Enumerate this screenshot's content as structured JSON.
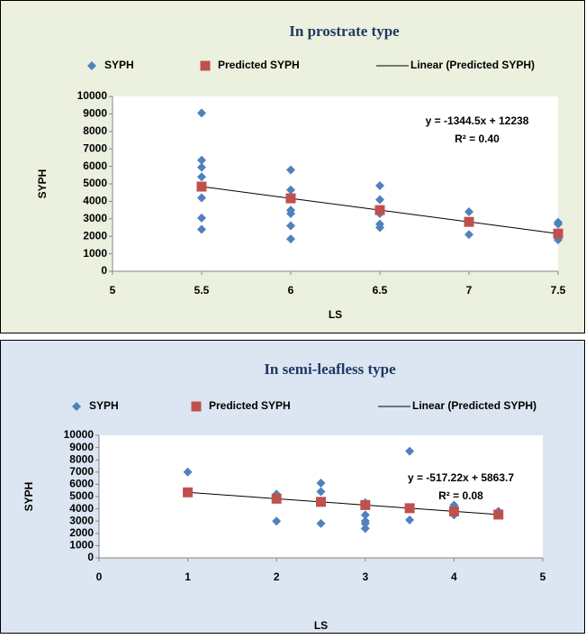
{
  "chart_data": [
    {
      "type": "scatter",
      "title": "In prostrate type",
      "x_label": "LS",
      "y_label": "SYPH",
      "xlim": [
        5,
        7.5
      ],
      "xticks": [
        5,
        5.5,
        6,
        6.5,
        7,
        7.5
      ],
      "ylim": [
        0,
        10000
      ],
      "yticks": [
        0,
        1000,
        2000,
        3000,
        4000,
        5000,
        6000,
        7000,
        8000,
        9000,
        10000
      ],
      "grid": false,
      "series": [
        {
          "name": "SYPH",
          "color": "#4f81bd",
          "marker": "diamond",
          "x": [
            5.5,
            5.5,
            5.5,
            5.5,
            5.5,
            5.5,
            5.5,
            6,
            6,
            6,
            6,
            6,
            6,
            6.5,
            6.5,
            6.5,
            6.5,
            6.5,
            7,
            7,
            7.5,
            7.5,
            7.5,
            7.5
          ],
          "values": [
            9050,
            6350,
            5950,
            5400,
            4200,
            3050,
            2400,
            5800,
            4650,
            3500,
            3300,
            2600,
            1850,
            4900,
            4100,
            3300,
            2700,
            2500,
            3400,
            2100,
            2800,
            2700,
            2000,
            1800
          ]
        },
        {
          "name": "Predicted SYPH",
          "color": "#c0504d",
          "marker": "square",
          "x": [
            5.5,
            6,
            6.5,
            7,
            7.5
          ],
          "values": [
            4843,
            4171,
            3499,
            2826,
            2154
          ]
        }
      ],
      "trendline": {
        "name": "Linear (Predicted SYPH)",
        "color": "#000000",
        "equation": "y = -1344.5x + 12238",
        "r2": "R² = 0.40"
      }
    },
    {
      "type": "scatter",
      "title": "In semi-leafless type",
      "x_label": "LS",
      "y_label": "SYPH",
      "xlim": [
        0,
        5
      ],
      "xticks": [
        0,
        1,
        2,
        3,
        4,
        5
      ],
      "ylim": [
        0,
        10000
      ],
      "yticks": [
        0,
        1000,
        2000,
        3000,
        4000,
        5000,
        6000,
        7000,
        8000,
        9000,
        10000
      ],
      "grid": false,
      "series": [
        {
          "name": "SYPH",
          "color": "#4f81bd",
          "marker": "diamond",
          "x": [
            1,
            2,
            2,
            2,
            2.5,
            2.5,
            2.5,
            3,
            3,
            3,
            3,
            3,
            3.5,
            3.5,
            3.5,
            4,
            4,
            4,
            4.5
          ],
          "values": [
            7000,
            5200,
            5000,
            3000,
            6100,
            5400,
            2800,
            4500,
            3500,
            3000,
            2800,
            2400,
            8700,
            4100,
            3100,
            4300,
            3700,
            3500,
            3800
          ]
        },
        {
          "name": "Predicted SYPH",
          "color": "#c0504d",
          "marker": "square",
          "x": [
            1,
            2,
            2.5,
            3,
            3.5,
            4,
            4.5
          ],
          "values": [
            5346,
            4829,
            4571,
            4312,
            4053,
            3795,
            3536
          ]
        }
      ],
      "trendline": {
        "name": "Linear (Predicted SYPH)",
        "color": "#000000",
        "equation": "y = -517.22x + 5863.7",
        "r2": "R² = 0.08"
      }
    }
  ]
}
